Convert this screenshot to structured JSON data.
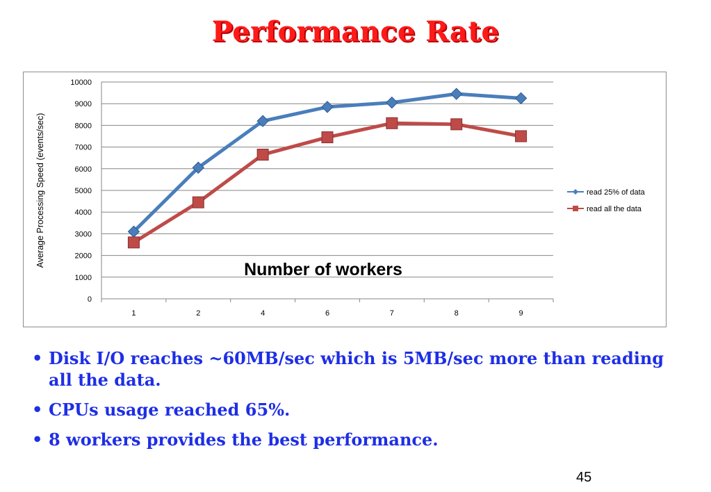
{
  "slide": {
    "title": "Performance Rate",
    "page_number": "45",
    "bullets": [
      "Disk I/O reaches ~60MB/sec which is 5MB/sec more than reading all the data.",
      "CPUs usage reached 65%.",
      "8 workers provides the best performance."
    ]
  },
  "chart_data": {
    "type": "line",
    "title": "",
    "xlabel": "Number of workers",
    "ylabel": "Average Processing Speed (events/sec)",
    "categories": [
      "1",
      "2",
      "4",
      "6",
      "7",
      "8",
      "9"
    ],
    "ylim": [
      0,
      10000
    ],
    "yticks": [
      0,
      1000,
      2000,
      3000,
      4000,
      5000,
      6000,
      7000,
      8000,
      9000,
      10000
    ],
    "grid": true,
    "legend_position": "right",
    "series": [
      {
        "name": "read 25% of data",
        "marker": "diamond",
        "color": "#4a7ebb",
        "values": [
          3100,
          6050,
          8200,
          8850,
          9050,
          9450,
          9250
        ]
      },
      {
        "name": "read all the data",
        "marker": "square",
        "color": "#be4b48",
        "values": [
          2600,
          4450,
          6650,
          7450,
          8100,
          8050,
          7500
        ]
      }
    ]
  }
}
